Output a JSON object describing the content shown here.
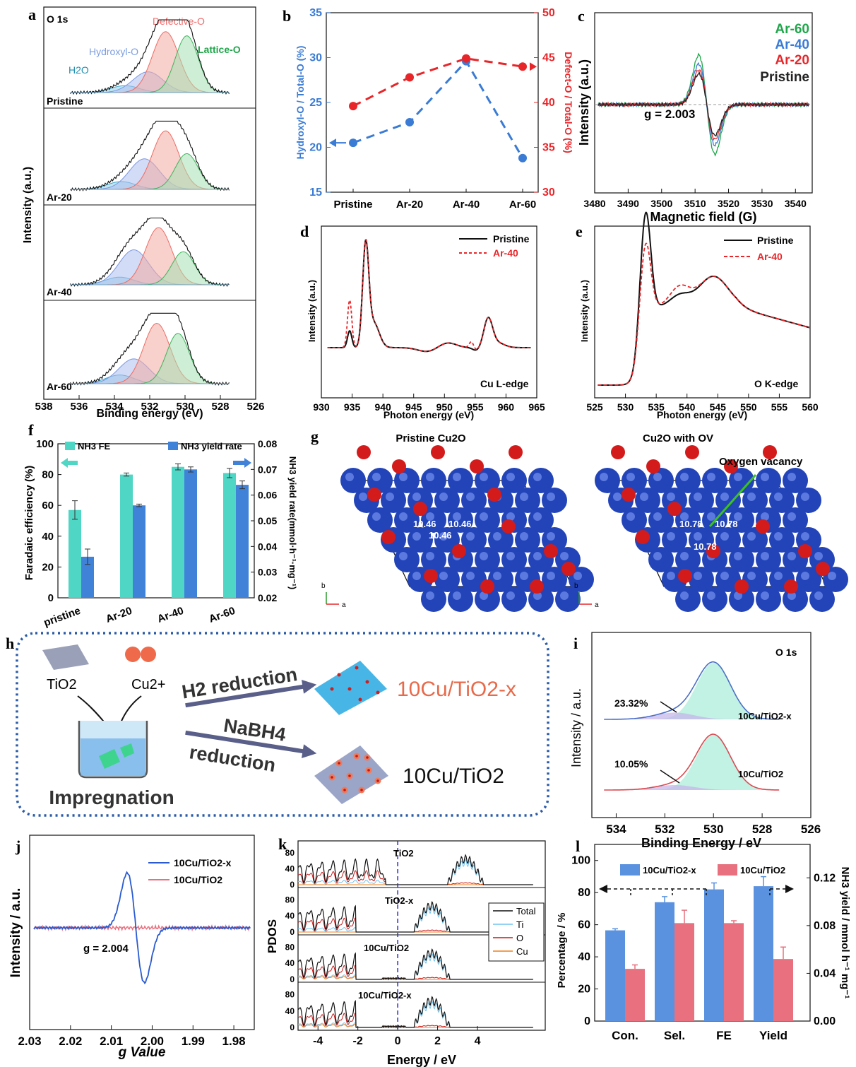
{
  "colors": {
    "black": "#111111",
    "red": "#e8262a",
    "blue": "#3a7bd5",
    "green": "#1fa64a",
    "teal": "#4fd6c4",
    "barblue": "#3f82d8",
    "pink": "#e8707f",
    "cu": "#2a4fc4",
    "o": "#d31b1b"
  },
  "figure": {
    "a": {
      "label": "a",
      "title": "O 1s",
      "ylabel": "Intensity (a.u.)",
      "xlabel": "Binding energy (eV)",
      "xticks": [
        "538",
        "536",
        "534",
        "532",
        "530",
        "528",
        "526"
      ],
      "samples": [
        "Pristine",
        "Ar-20",
        "Ar-40",
        "Ar-60"
      ],
      "peaks": {
        "h2o": "H2O",
        "hydroxyl": "Hydroxyl-O",
        "defective": "Defective-O",
        "lattice": "Lattice-O"
      }
    },
    "b": {
      "label": "b",
      "ylabel_left": "Hydroxyl-O / Total-O (%)",
      "ylabel_right": "Defect-O / Total-O (%)",
      "categories": [
        "Pristine",
        "Ar-20",
        "Ar-40",
        "Ar-60"
      ],
      "yticks_left": [
        "15",
        "20",
        "25",
        "30",
        "35"
      ],
      "yticks_right": [
        "30",
        "35",
        "40",
        "45",
        "50"
      ]
    },
    "c": {
      "label": "c",
      "xlabel": "Magnetic field (G)",
      "ylabel": "Intensity (a.u.)",
      "xticks": [
        "3480",
        "3490",
        "3500",
        "3510",
        "3520",
        "3530",
        "3540"
      ],
      "legend": [
        "Ar-60",
        "Ar-40",
        "Ar-20",
        "Pristine"
      ],
      "annotation": "g = 2.003"
    },
    "d": {
      "label": "d",
      "xlabel": "Photon energy (eV)",
      "ylabel": "Intensity (a.u.)",
      "xticks": [
        "930",
        "935",
        "940",
        "945",
        "950",
        "955",
        "960",
        "965"
      ],
      "legend": [
        "Pristine",
        "Ar-40"
      ],
      "edge": "Cu L-edge"
    },
    "e": {
      "label": "e",
      "xlabel": "Photon energy (eV)",
      "ylabel": "Intensity (a.u.)",
      "xticks": [
        "525",
        "530",
        "535",
        "540",
        "545",
        "550",
        "555",
        "560"
      ],
      "legend": [
        "Pristine",
        "Ar-40"
      ],
      "edge": "O K-edge"
    },
    "f": {
      "label": "f",
      "ylabel_left": "Faradaic efficiency (%)",
      "ylabel_right": "NH3 yield rate(mmol·h⁻¹·mg⁻¹)",
      "yticks_left": [
        "0",
        "20",
        "40",
        "60",
        "80",
        "100"
      ],
      "yticks_right": [
        "0.02",
        "0.03",
        "0.04",
        "0.05",
        "0.06",
        "0.07",
        "0.08"
      ],
      "legend": [
        "NH3 FE",
        "NH3 yield rate"
      ]
    },
    "g": {
      "label": "g",
      "left_title": "Pristine Cu2O",
      "right_title": "Cu2O with OV",
      "vacancy_label": "Oxygen vacancy",
      "left_values": [
        "10.46",
        "10.46",
        "10.46"
      ],
      "right_values": [
        "10.78",
        "10.78",
        "10.78"
      ],
      "axis_b": "b",
      "axis_a": "a"
    },
    "h": {
      "label": "h",
      "tio2": "TiO2",
      "cu2": "Cu2+",
      "h2_reduction": "H2 reduction",
      "nabh4": "NaBH4",
      "reduction": "reduction",
      "product1": "10Cu/TiO2-x",
      "product2": "10Cu/TiO2",
      "impregnation": "Impregnation"
    },
    "i": {
      "label": "i",
      "title": "O 1s",
      "ylabel": "Intensity / a.u.",
      "xlabel": "Binding Energy / eV",
      "xticks": [
        "534",
        "532",
        "530",
        "528",
        "526"
      ],
      "top_sample": "10Cu/TiO2-x",
      "bottom_sample": "10Cu/TiO2",
      "top_pct": "23.32%",
      "bottom_pct": "10.05%"
    },
    "j": {
      "label": "j",
      "ylabel": "Intensity / a.u.",
      "xlabel": "g Value",
      "xticks": [
        "2.03",
        "2.02",
        "2.01",
        "2.00",
        "1.99",
        "1.98"
      ],
      "legend": [
        "10Cu/TiO2-x",
        "10Cu/TiO2"
      ],
      "annotation": "g = 2.004"
    },
    "k": {
      "label": "k",
      "ylabel": "PDOS",
      "xlabel": "Energy / eV",
      "xticks": [
        "-4",
        "-2",
        "0",
        "2",
        "4"
      ],
      "yticks": [
        "0",
        "40",
        "80"
      ],
      "panels": [
        "TiO2",
        "TiO2-x",
        "10Cu/TiO2",
        "10Cu/TiO2-x"
      ],
      "legend": [
        "Total",
        "Ti",
        "O",
        "Cu"
      ]
    },
    "l": {
      "label": "l",
      "ylabel_left": "Percentage / %",
      "ylabel_right": "NH3 yield / mmol h⁻¹ mg⁻¹",
      "yticks_left": [
        "0",
        "20",
        "40",
        "60",
        "80",
        "100"
      ],
      "yticks_right": [
        "0.00",
        "0.04",
        "0.08",
        "0.12"
      ],
      "legend": [
        "10Cu/TiO2-x",
        "10Cu/TiO2"
      ]
    }
  },
  "chart_data": [
    {
      "panel": "b",
      "type": "line",
      "categories": [
        "Pristine",
        "Ar-20",
        "Ar-40",
        "Ar-60"
      ],
      "series": [
        {
          "name": "Hydroxyl-O / Total-O (%)",
          "axis": "left",
          "values": [
            20.5,
            22.8,
            29.6,
            18.8
          ]
        },
        {
          "name": "Defect-O / Total-O (%)",
          "axis": "right",
          "values": [
            39.6,
            42.8,
            44.9,
            44.0
          ]
        }
      ],
      "ylim_left": [
        15,
        35
      ],
      "ylim_right": [
        30,
        50
      ]
    },
    {
      "panel": "f",
      "type": "bar",
      "categories": [
        "pristine",
        "Ar-20",
        "Ar-40",
        "Ar-60"
      ],
      "series": [
        {
          "name": "NH3 FE",
          "axis": "left",
          "values": [
            57,
            80,
            85,
            81
          ],
          "errors": [
            6,
            1,
            2,
            3
          ]
        },
        {
          "name": "NH3 yield rate",
          "axis": "right",
          "values": [
            0.036,
            0.056,
            0.07,
            0.064
          ],
          "errors": [
            0.003,
            0.0005,
            0.001,
            0.0015
          ]
        }
      ],
      "ylim_left": [
        0,
        100
      ],
      "ylim_right": [
        0.02,
        0.08
      ]
    },
    {
      "panel": "l",
      "type": "bar",
      "categories": [
        "Con.",
        "Sel.",
        "FE",
        "Yield"
      ],
      "series": [
        {
          "name": "10Cu/TiO2-x",
          "values": [
            56.5,
            74,
            82,
            0.113
          ],
          "errors": [
            1,
            3.5,
            4,
            0.008
          ]
        },
        {
          "name": "10Cu/TiO2",
          "values": [
            32.5,
            61,
            61,
            0.052
          ],
          "errors": [
            2.5,
            8,
            1.5,
            0.01
          ]
        }
      ],
      "ylim_left": [
        0,
        110
      ],
      "ylim_right": [
        0,
        0.148
      ]
    },
    {
      "panel": "a",
      "type": "line",
      "note_units": "binding energy (eV)",
      "samples": [
        "Pristine",
        "Ar-20",
        "Ar-40",
        "Ar-60"
      ],
      "peaks": [
        {
          "name": "H2O",
          "centers": [
            533.4,
            533.6,
            533.7,
            533.7
          ],
          "heights": [
            0.1,
            0.12,
            0.12,
            0.13
          ]
        },
        {
          "name": "Hydroxyl-O",
          "centers": [
            532.1,
            532.3,
            532.9,
            532.9
          ],
          "heights": [
            0.3,
            0.47,
            0.55,
            0.37
          ]
        },
        {
          "name": "Defective-O",
          "centers": [
            531.1,
            531.1,
            531.5,
            531.6
          ],
          "heights": [
            0.88,
            0.9,
            0.9,
            0.9
          ]
        },
        {
          "name": "Lattice-O",
          "centers": [
            529.9,
            529.9,
            530.1,
            530.4
          ],
          "heights": [
            0.82,
            0.55,
            0.52,
            0.75
          ]
        }
      ]
    },
    {
      "panel": "c",
      "type": "line",
      "series": [
        "Ar-60",
        "Ar-40",
        "Ar-20",
        "Pristine"
      ],
      "xlim": [
        3480,
        3545
      ],
      "center_G": 3513.5,
      "rel_amplitude": [
        1.0,
        0.82,
        0.7,
        0.62
      ]
    },
    {
      "panel": "j",
      "type": "line",
      "series": [
        "10Cu/TiO2-x",
        "10Cu/TiO2"
      ],
      "xlim": [
        2.03,
        1.975
      ],
      "g_center": 2.004
    }
  ]
}
